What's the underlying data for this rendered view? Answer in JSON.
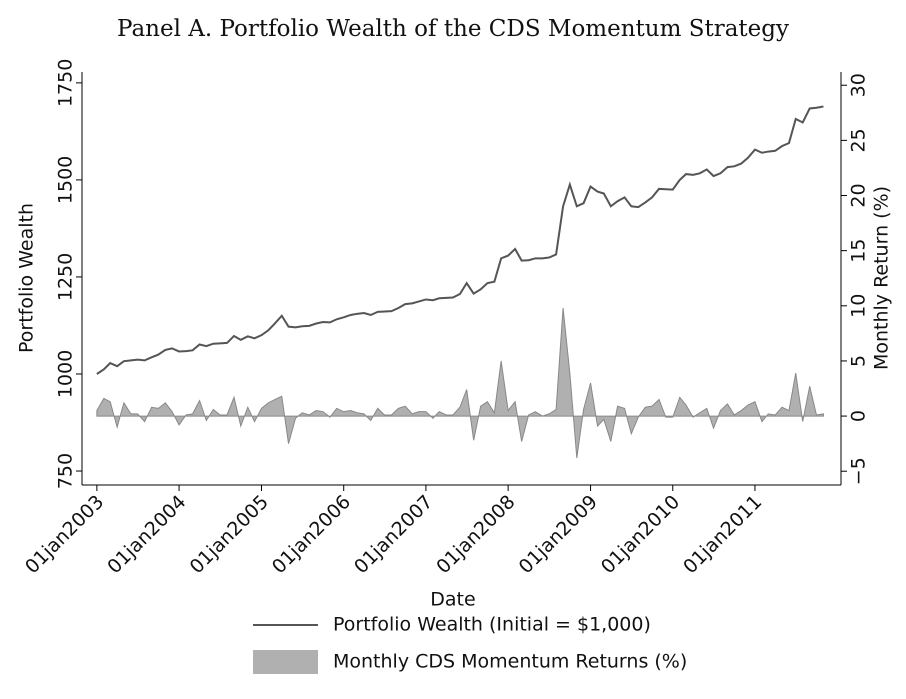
{
  "chart_data": {
    "type": "line-area",
    "title": "Panel A. Portfolio Wealth of the CDS Momentum Strategy",
    "x_label": "Date",
    "y_label": "Portfolio Wealth",
    "y2_label": "Monthly Return (%)",
    "x": [
      "2003-01-01",
      "2003-02-01",
      "2003-03-01",
      "2003-04-01",
      "2003-05-01",
      "2003-06-01",
      "2003-07-01",
      "2003-08-01",
      "2003-09-01",
      "2003-10-01",
      "2003-11-01",
      "2003-12-01",
      "2004-01-01",
      "2004-02-01",
      "2004-03-01",
      "2004-04-01",
      "2004-05-01",
      "2004-06-01",
      "2004-07-01",
      "2004-08-01",
      "2004-09-01",
      "2004-10-01",
      "2004-11-01",
      "2004-12-01",
      "2005-01-01",
      "2005-02-01",
      "2005-03-01",
      "2005-04-01",
      "2005-05-01",
      "2005-06-01",
      "2005-07-01",
      "2005-08-01",
      "2005-09-01",
      "2005-10-01",
      "2005-11-01",
      "2005-12-01",
      "2006-01-01",
      "2006-02-01",
      "2006-03-01",
      "2006-04-01",
      "2006-05-01",
      "2006-06-01",
      "2006-07-01",
      "2006-08-01",
      "2006-09-01",
      "2006-10-01",
      "2006-11-01",
      "2006-12-01",
      "2007-01-01",
      "2007-02-01",
      "2007-03-01",
      "2007-04-01",
      "2007-05-01",
      "2007-06-01",
      "2007-07-01",
      "2007-08-01",
      "2007-09-01",
      "2007-10-01",
      "2007-11-01",
      "2007-12-01",
      "2008-01-01",
      "2008-02-01",
      "2008-03-01",
      "2008-04-01",
      "2008-05-01",
      "2008-06-01",
      "2008-07-01",
      "2008-08-01",
      "2008-09-01",
      "2008-10-01",
      "2008-11-01",
      "2008-12-01",
      "2009-01-01",
      "2009-02-01",
      "2009-03-01",
      "2009-04-01",
      "2009-05-01",
      "2009-06-01",
      "2009-07-01",
      "2009-08-01",
      "2009-09-01",
      "2009-10-01",
      "2009-11-01",
      "2009-12-01",
      "2010-01-01",
      "2010-02-01",
      "2010-03-01",
      "2010-04-01",
      "2010-05-01",
      "2010-06-01",
      "2010-07-01",
      "2010-08-01",
      "2010-09-01",
      "2010-10-01",
      "2010-11-01",
      "2010-12-01",
      "2011-01-01",
      "2011-02-01",
      "2011-03-01",
      "2011-04-01",
      "2011-05-01",
      "2011-06-01",
      "2011-07-01",
      "2011-08-01",
      "2011-09-01",
      "2011-10-01",
      "2011-11-01"
    ],
    "series": [
      {
        "name": "Portfolio Wealth (Initial = $1,000)",
        "kind": "line",
        "color": "#555555",
        "values": [
          1000,
          1012,
          1028,
          1020,
          1033,
          1035,
          1037,
          1035,
          1043,
          1050,
          1062,
          1066,
          1058,
          1059,
          1061,
          1076,
          1072,
          1078,
          1079,
          1080,
          1098,
          1088,
          1097,
          1092,
          1100,
          1113,
          1130,
          1150,
          1122,
          1120,
          1123,
          1124,
          1130,
          1134,
          1133,
          1141,
          1146,
          1152,
          1155,
          1157,
          1152,
          1160,
          1161,
          1162,
          1170,
          1180,
          1182,
          1187,
          1192,
          1190,
          1195,
          1196,
          1197,
          1206,
          1234,
          1207,
          1218,
          1234,
          1238,
          1298,
          1305,
          1322,
          1292,
          1293,
          1298,
          1298,
          1300,
          1308,
          1432,
          1488,
          1432,
          1440,
          1483,
          1470,
          1465,
          1432,
          1445,
          1455,
          1432,
          1430,
          1442,
          1455,
          1477,
          1476,
          1475,
          1500,
          1515,
          1513,
          1517,
          1527,
          1510,
          1517,
          1533,
          1535,
          1542,
          1557,
          1578,
          1570,
          1573,
          1575,
          1587,
          1595,
          1657,
          1648,
          1684,
          1686,
          1689
        ]
      },
      {
        "name": "Monthly CDS Momentum Returns (%)",
        "kind": "area",
        "axis": "y2",
        "color": "#b0b0b0",
        "values": [
          0.5,
          1.6,
          1.3,
          -1.0,
          1.2,
          0.2,
          0.2,
          -0.5,
          0.8,
          0.7,
          1.2,
          0.4,
          -0.8,
          0.1,
          0.2,
          1.4,
          -0.4,
          0.6,
          0.1,
          0.1,
          1.7,
          -0.9,
          0.8,
          -0.5,
          0.7,
          1.2,
          1.5,
          1.8,
          -2.5,
          -0.2,
          0.3,
          0.1,
          0.5,
          0.4,
          -0.1,
          0.7,
          0.4,
          0.5,
          0.3,
          0.2,
          -0.4,
          0.7,
          0.1,
          0.1,
          0.7,
          0.9,
          0.2,
          0.4,
          0.4,
          -0.2,
          0.4,
          0.1,
          0.1,
          0.8,
          2.4,
          -2.2,
          0.9,
          1.3,
          0.3,
          5.0,
          0.5,
          1.3,
          -2.3,
          0.1,
          0.4,
          0,
          0.2,
          0.6,
          9.8,
          3.9,
          -3.8,
          0.6,
          3.0,
          -0.9,
          -0.3,
          -2.3,
          0.9,
          0.7,
          -1.6,
          -0.1,
          0.8,
          0.9,
          1.5,
          -0.1,
          -0.1,
          1.7,
          1.0,
          -0.1,
          0.3,
          0.7,
          -1.1,
          0.5,
          1.1,
          0.1,
          0.5,
          1.0,
          1.3,
          -0.5,
          0.2,
          0.1,
          0.8,
          0.5,
          3.9,
          -0.5,
          2.7,
          0.1,
          0.2
        ]
      }
    ],
    "xlim": [
      "2002-10-27",
      "2012-01-18"
    ],
    "xticks": [
      {
        "value": "2003-01-01",
        "label": "01jan2003"
      },
      {
        "value": "2004-01-01",
        "label": "01jan2004"
      },
      {
        "value": "2005-01-01",
        "label": "01jan2005"
      },
      {
        "value": "2006-01-01",
        "label": "01jan2006"
      },
      {
        "value": "2007-01-01",
        "label": "01jan2007"
      },
      {
        "value": "2008-01-01",
        "label": "01jan2008"
      },
      {
        "value": "2009-01-01",
        "label": "01jan2009"
      },
      {
        "value": "2010-01-01",
        "label": "01jan2010"
      },
      {
        "value": "2011-01-01",
        "label": "01jan2011"
      }
    ],
    "ylim": [
      714,
      1778
    ],
    "yticks": [
      750,
      1000,
      1250,
      1500,
      1750
    ],
    "y2lim": [
      -6.25,
      31.2
    ],
    "y2ticks": [
      {
        "value": -5,
        "label": "−5"
      },
      0,
      5,
      10,
      15,
      20,
      25,
      30
    ]
  }
}
